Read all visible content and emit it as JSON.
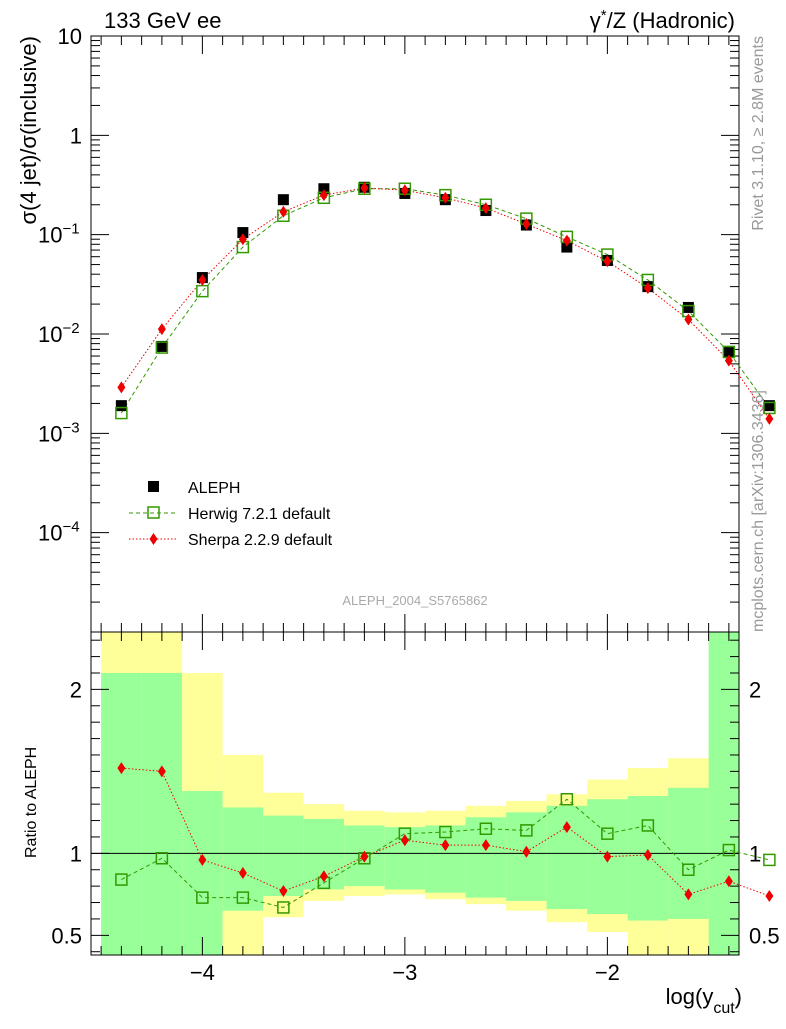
{
  "header": {
    "left": "133 GeV ee",
    "right_prefix": "γ",
    "right_sup": "*",
    "right_suffix": "/Z (Hadronic)"
  },
  "side_labels": {
    "rivet": "Rivet 3.1.10, ≥ 2.8M events",
    "mcplots": "mcplots.cern.ch [arXiv:1306.3436]"
  },
  "watermark": "ALEPH_2004_S5765862",
  "main_ylabel": "σ(4 jet)/σ(inclusive)",
  "ratio_ylabel": "Ratio to ALEPH",
  "xlabel": {
    "base": "log(y",
    "sub": "cut",
    "close": ")"
  },
  "legend": {
    "aleph": "ALEPH",
    "herwig": "Herwig 7.2.1 default",
    "sherpa": "Sherpa 2.2.9 default"
  },
  "colors": {
    "aleph": "#000000",
    "herwig": "#339900",
    "sherpa": "#ee0000",
    "band_inner": "#99ff99",
    "band_outer": "#ffff99"
  },
  "chart_data": [
    {
      "type": "scatter",
      "title": "",
      "xlabel": "log(y_cut)",
      "ylabel": "σ(4 jet)/σ(inclusive)",
      "yscale": "log",
      "xlim": [
        -4.55,
        -1.35
      ],
      "ylim": [
        1e-05,
        10
      ],
      "ytick_labels": [
        {
          "v": 10,
          "base": "10",
          "exp": ""
        },
        {
          "v": 1,
          "base": "1",
          "exp": ""
        },
        {
          "v": 0.1,
          "base": "10",
          "exp": "−1"
        },
        {
          "v": 0.01,
          "base": "10",
          "exp": "−2"
        },
        {
          "v": 0.001,
          "base": "10",
          "exp": "−3"
        },
        {
          "v": 0.0001,
          "base": "10",
          "exp": "−4"
        }
      ],
      "x": [
        -4.4,
        -4.2,
        -4.0,
        -3.8,
        -3.6,
        -3.4,
        -3.2,
        -3.0,
        -2.8,
        -2.6,
        -2.4,
        -2.2,
        -2.0,
        -1.8,
        -1.6,
        -1.4,
        -1.2
      ],
      "series": [
        {
          "name": "ALEPH",
          "values": [
            0.0019,
            0.0075,
            0.037,
            0.105,
            0.225,
            0.29,
            0.3,
            0.26,
            0.225,
            0.175,
            0.125,
            0.075,
            0.055,
            0.03,
            0.0185,
            0.0065,
            0.0019
          ]
        },
        {
          "name": "Herwig 7.2.1 default",
          "values": [
            0.0016,
            0.0073,
            0.027,
            0.075,
            0.155,
            0.235,
            0.29,
            0.29,
            0.25,
            0.2,
            0.145,
            0.095,
            0.063,
            0.035,
            0.017,
            0.0066,
            0.0018
          ]
        },
        {
          "name": "Sherpa 2.2.9 default",
          "values": [
            0.0029,
            0.0112,
            0.035,
            0.09,
            0.17,
            0.25,
            0.295,
            0.28,
            0.235,
            0.185,
            0.128,
            0.087,
            0.054,
            0.029,
            0.014,
            0.0054,
            0.0014
          ]
        }
      ]
    },
    {
      "type": "line",
      "title": "",
      "xlabel": "log(y_cut)",
      "ylabel": "Ratio to ALEPH",
      "xlim": [
        -4.55,
        -1.35
      ],
      "ylim": [
        0.38,
        2.35
      ],
      "yticks": [
        0.5,
        1,
        2
      ],
      "ytick_labels": [
        "0.5",
        "1",
        "2"
      ],
      "xticks": [
        -4,
        -3,
        -2
      ],
      "xtick_labels": [
        "−4",
        "−3",
        "−2"
      ],
      "x": [
        -4.4,
        -4.2,
        -4.0,
        -3.8,
        -3.6,
        -3.4,
        -3.2,
        -3.0,
        -2.8,
        -2.6,
        -2.4,
        -2.2,
        -2.0,
        -1.8,
        -1.6,
        -1.4,
        -1.2
      ],
      "series": [
        {
          "name": "Herwig 7.2.1 default",
          "values": [
            0.84,
            0.97,
            0.73,
            0.73,
            0.67,
            0.82,
            0.97,
            1.12,
            1.13,
            1.15,
            1.14,
            1.33,
            1.12,
            1.17,
            0.9,
            1.02,
            0.96
          ]
        },
        {
          "name": "Sherpa 2.2.9 default",
          "values": [
            1.52,
            1.5,
            0.96,
            0.88,
            0.77,
            0.86,
            0.98,
            1.08,
            1.05,
            1.05,
            1.01,
            1.16,
            0.98,
            0.99,
            0.75,
            0.83,
            0.74
          ]
        }
      ],
      "bands": {
        "edges": [
          -4.5,
          -4.3,
          -4.1,
          -3.9,
          -3.7,
          -3.5,
          -3.3,
          -3.1,
          -2.9,
          -2.7,
          -2.5,
          -2.3,
          -2.1,
          -1.9,
          -1.7,
          -1.5,
          -1.3
        ],
        "inner_low": [
          0.3,
          0.3,
          0.3,
          0.65,
          0.74,
          0.78,
          0.8,
          0.78,
          0.76,
          0.73,
          0.71,
          0.66,
          0.63,
          0.59,
          0.6,
          0.3,
          0.3
        ],
        "inner_high": [
          2.1,
          2.1,
          1.38,
          1.28,
          1.23,
          1.21,
          1.17,
          1.16,
          1.17,
          1.22,
          1.25,
          1.29,
          1.33,
          1.35,
          1.4,
          2.5,
          2.5
        ],
        "outer_low": [
          0.3,
          0.3,
          0.3,
          0.3,
          0.61,
          0.71,
          0.74,
          0.75,
          0.72,
          0.69,
          0.65,
          0.58,
          0.52,
          0.3,
          0.3,
          0.3,
          0.3
        ],
        "outer_high": [
          2.5,
          2.5,
          2.1,
          1.6,
          1.37,
          1.3,
          1.26,
          1.25,
          1.26,
          1.29,
          1.32,
          1.36,
          1.45,
          1.52,
          1.58,
          1.67,
          2.5
        ]
      }
    }
  ]
}
